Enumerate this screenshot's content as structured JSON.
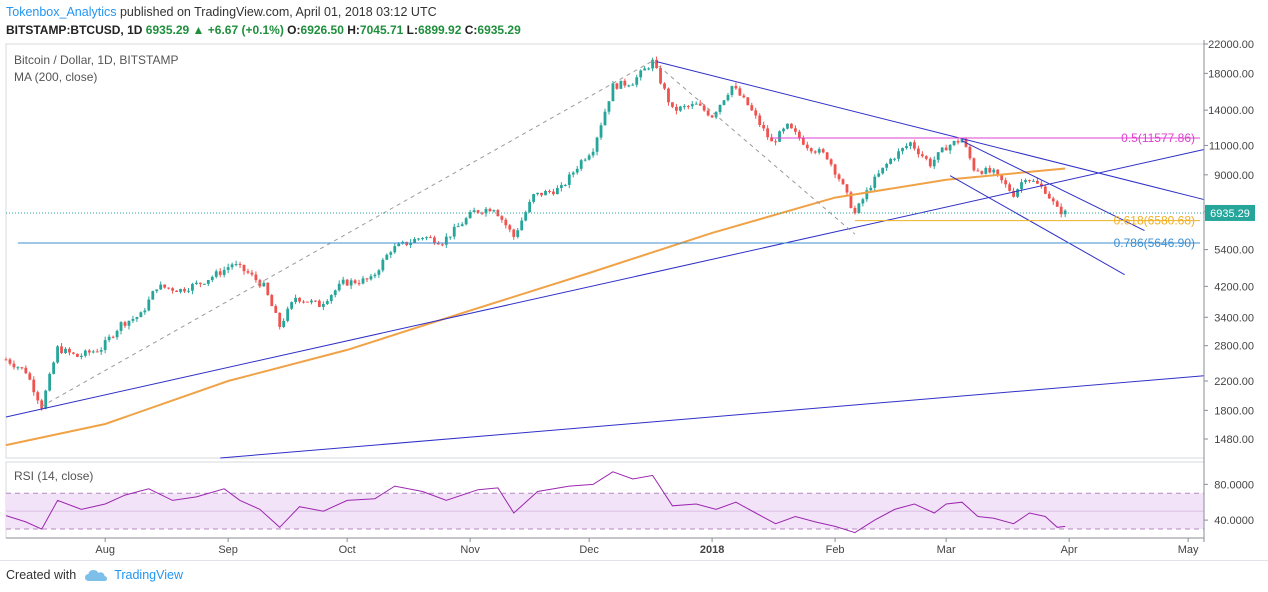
{
  "header": {
    "author": "Tokenbox_Analytics",
    "published": "published on TradingView.com, April 01, 2018 03:12 UTC",
    "symbol": "BITSTAMP:BTCUSD, 1D",
    "last": "6935.29",
    "change": "+6.67 (+0.1%)",
    "o_label": "O:",
    "o": "6926.50",
    "h_label": "H:",
    "h": "7045.71",
    "l_label": "L:",
    "l": "6899.92",
    "c_label": "C:",
    "c": "6935.29"
  },
  "footer": {
    "created_with": "Created with",
    "brand": "TradingView"
  },
  "colors": {
    "up": "#26a69a",
    "down": "#ef5350",
    "ma": "#f0a247",
    "trend": "#3030c8",
    "fib05": "#e040d0",
    "fib0618": "#f0b020",
    "fib0786": "#3d8fd0",
    "rsi": "#9c27b0"
  },
  "chart_data": {
    "type": "candlestick",
    "title": "Bitcoin / Dollar, 1D, BITSTAMP",
    "indicator": "MA (200, close)",
    "y_scale": "log",
    "ylim": [
      1300,
      22000
    ],
    "y_ticks": [
      "22000.00",
      "18000.00",
      "14000.00",
      "11000.00",
      "9000.00",
      "7000.00",
      "5400.00",
      "4200.00",
      "3400.00",
      "2800.00",
      "2200.00",
      "1800.00",
      "1480.00"
    ],
    "x_ticks": [
      "Aug",
      "Sep",
      "Oct",
      "Nov",
      "Dec",
      "2018",
      "Feb",
      "Mar",
      "Apr",
      "May"
    ],
    "x_range": [
      "2017-07-07",
      "2018-05-05"
    ],
    "last_price_label": "6935.29",
    "price_path": [
      [
        "2017-07-07",
        2550
      ],
      [
        "2017-07-12",
        2350
      ],
      [
        "2017-07-16",
        1850
      ],
      [
        "2017-07-20",
        2750
      ],
      [
        "2017-07-25",
        2600
      ],
      [
        "2017-07-31",
        2750
      ],
      [
        "2017-08-05",
        3250
      ],
      [
        "2017-08-10",
        3450
      ],
      [
        "2017-08-14",
        4200
      ],
      [
        "2017-08-20",
        4100
      ],
      [
        "2017-08-25",
        4300
      ],
      [
        "2017-08-31",
        4700
      ],
      [
        "2017-09-02",
        4900
      ],
      [
        "2017-09-06",
        4600
      ],
      [
        "2017-09-10",
        4200
      ],
      [
        "2017-09-14",
        3200
      ],
      [
        "2017-09-18",
        3900
      ],
      [
        "2017-09-24",
        3700
      ],
      [
        "2017-09-30",
        4300
      ],
      [
        "2017-10-07",
        4400
      ],
      [
        "2017-10-12",
        5400
      ],
      [
        "2017-10-20",
        5900
      ],
      [
        "2017-10-25",
        5700
      ],
      [
        "2017-11-02",
        7000
      ],
      [
        "2017-11-07",
        7200
      ],
      [
        "2017-11-12",
        5900
      ],
      [
        "2017-11-17",
        7800
      ],
      [
        "2017-11-24",
        8200
      ],
      [
        "2017-11-29",
        9900
      ],
      [
        "2017-12-02",
        10800
      ],
      [
        "2017-12-07",
        16500
      ],
      [
        "2017-12-12",
        17000
      ],
      [
        "2017-12-17",
        19500
      ],
      [
        "2017-12-22",
        14000
      ],
      [
        "2017-12-28",
        14500
      ],
      [
        "2018-01-01",
        13500
      ],
      [
        "2018-01-06",
        16500
      ],
      [
        "2018-01-10",
        14500
      ],
      [
        "2018-01-16",
        11200
      ],
      [
        "2018-01-20",
        12500
      ],
      [
        "2018-01-25",
        11000
      ],
      [
        "2018-01-30",
        10200
      ],
      [
        "2018-02-02",
        8800
      ],
      [
        "2018-02-06",
        6900
      ],
      [
        "2018-02-10",
        8400
      ],
      [
        "2018-02-15",
        10000
      ],
      [
        "2018-02-20",
        11200
      ],
      [
        "2018-02-25",
        9700
      ],
      [
        "2018-03-01",
        10900
      ],
      [
        "2018-03-05",
        11500
      ],
      [
        "2018-03-08",
        9400
      ],
      [
        "2018-03-13",
        9100
      ],
      [
        "2018-03-18",
        7900
      ],
      [
        "2018-03-21",
        8900
      ],
      [
        "2018-03-26",
        8100
      ],
      [
        "2018-03-29",
        7100
      ],
      [
        "2018-03-31",
        6935.29
      ]
    ],
    "ma200_path": [
      [
        "2017-07-07",
        1420
      ],
      [
        "2017-08-01",
        1640
      ],
      [
        "2017-09-01",
        2200
      ],
      [
        "2017-10-01",
        2720
      ],
      [
        "2017-11-01",
        3560
      ],
      [
        "2017-12-01",
        4600
      ],
      [
        "2018-01-01",
        6050
      ],
      [
        "2018-02-01",
        7700
      ],
      [
        "2018-03-01",
        8700
      ],
      [
        "2018-03-31",
        9400
      ]
    ],
    "trendlines": [
      {
        "from": [
          "2017-07-07",
          1720
        ],
        "to": [
          "2018-05-05",
          10700
        ]
      },
      {
        "from": [
          "2017-12-18",
          19500
        ],
        "to": [
          "2018-05-05",
          7600
        ]
      },
      {
        "from": [
          "2018-03-05",
          11350
        ],
        "to": [
          "2018-04-20",
          6150
        ]
      },
      {
        "from": [
          "2018-03-02",
          8950
        ],
        "to": [
          "2018-04-15",
          4550
        ]
      },
      {
        "from": [
          "2017-08-30",
          1300
        ],
        "to": [
          "2018-05-05",
          2280
        ]
      }
    ],
    "fib_dashed": [
      {
        "from": [
          "2017-07-16",
          1850
        ],
        "to": [
          "2017-12-17",
          19600
        ]
      },
      {
        "from": [
          "2017-12-17",
          19600
        ],
        "to": [
          "2018-02-06",
          6000
        ]
      }
    ],
    "fib_levels": [
      {
        "label": "0.5(11577.86)",
        "value": 11577.86,
        "from": "2018-01-16"
      },
      {
        "label": "0.618(6580.68)",
        "value": 6580.68,
        "from": "2018-02-06"
      },
      {
        "label": "0.786(5646.90)",
        "value": 5646.9,
        "from": "2017-07-10"
      }
    ],
    "rsi": {
      "label": "RSI (14, close)",
      "ylim": [
        20,
        105
      ],
      "y_ticks": [
        "80.0000",
        "40.0000"
      ],
      "band": [
        30,
        70
      ],
      "path": [
        [
          "2017-07-07",
          45
        ],
        [
          "2017-07-12",
          38
        ],
        [
          "2017-07-16",
          30
        ],
        [
          "2017-07-20",
          62
        ],
        [
          "2017-07-26",
          52
        ],
        [
          "2017-08-01",
          58
        ],
        [
          "2017-08-06",
          68
        ],
        [
          "2017-08-12",
          75
        ],
        [
          "2017-08-18",
          62
        ],
        [
          "2017-08-24",
          66
        ],
        [
          "2017-08-31",
          75
        ],
        [
          "2017-09-04",
          62
        ],
        [
          "2017-09-09",
          52
        ],
        [
          "2017-09-14",
          32
        ],
        [
          "2017-09-19",
          55
        ],
        [
          "2017-09-25",
          50
        ],
        [
          "2017-10-01",
          62
        ],
        [
          "2017-10-08",
          64
        ],
        [
          "2017-10-13",
          78
        ],
        [
          "2017-10-20",
          72
        ],
        [
          "2017-10-26",
          62
        ],
        [
          "2017-11-03",
          74
        ],
        [
          "2017-11-08",
          76
        ],
        [
          "2017-11-12",
          48
        ],
        [
          "2017-11-18",
          72
        ],
        [
          "2017-11-26",
          78
        ],
        [
          "2017-12-02",
          80
        ],
        [
          "2017-12-07",
          94
        ],
        [
          "2017-12-12",
          86
        ],
        [
          "2017-12-17",
          90
        ],
        [
          "2017-12-22",
          56
        ],
        [
          "2017-12-28",
          58
        ],
        [
          "2018-01-02",
          52
        ],
        [
          "2018-01-07",
          60
        ],
        [
          "2018-01-12",
          48
        ],
        [
          "2018-01-17",
          36
        ],
        [
          "2018-01-22",
          44
        ],
        [
          "2018-01-27",
          38
        ],
        [
          "2018-02-01",
          33
        ],
        [
          "2018-02-06",
          26
        ],
        [
          "2018-02-11",
          40
        ],
        [
          "2018-02-16",
          52
        ],
        [
          "2018-02-21",
          58
        ],
        [
          "2018-02-26",
          48
        ],
        [
          "2018-03-01",
          58
        ],
        [
          "2018-03-05",
          60
        ],
        [
          "2018-03-09",
          44
        ],
        [
          "2018-03-13",
          42
        ],
        [
          "2018-03-18",
          36
        ],
        [
          "2018-03-22",
          48
        ],
        [
          "2018-03-26",
          44
        ],
        [
          "2018-03-29",
          32
        ],
        [
          "2018-03-31",
          33
        ]
      ]
    }
  }
}
